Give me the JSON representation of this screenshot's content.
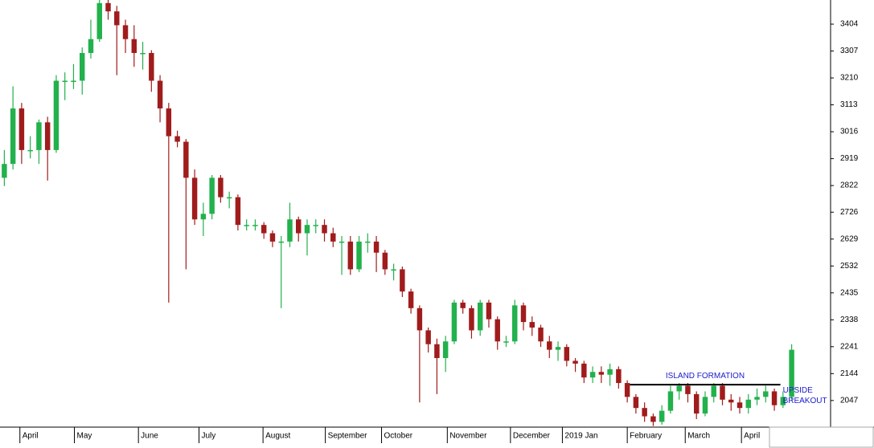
{
  "chart_data": {
    "type": "candlestick",
    "up_color": "#22b14c",
    "down_color": "#a01c1c",
    "xlim": [
      0,
      96
    ],
    "ylim": [
      1951,
      3491
    ],
    "yticks": [
      3404,
      3307,
      3210,
      3113,
      3016,
      2919,
      2822,
      2726,
      2629,
      2532,
      2435,
      2338,
      2241,
      2144,
      2047
    ],
    "xticks": [
      {
        "value": 2.3,
        "label": "April"
      },
      {
        "value": 8.6,
        "label": "May"
      },
      {
        "value": 16,
        "label": "June"
      },
      {
        "value": 23,
        "label": "July"
      },
      {
        "value": 30.4,
        "label": "August"
      },
      {
        "value": 37.6,
        "label": "September"
      },
      {
        "value": 44.1,
        "label": "October"
      },
      {
        "value": 51.7,
        "label": "November"
      },
      {
        "value": 59,
        "label": "December"
      },
      {
        "value": 65,
        "label": "2019 Jan"
      },
      {
        "value": 72.5,
        "label": "February"
      },
      {
        "value": 79.2,
        "label": "March"
      },
      {
        "value": 85.7,
        "label": "April"
      }
    ],
    "open": [
      2850,
      2900,
      3100,
      2950,
      2950,
      3050,
      2950,
      3200,
      3200,
      3200,
      3300,
      3350,
      3480,
      3450,
      3400,
      3350,
      3300,
      3300,
      3200,
      3100,
      3000,
      2980,
      2850,
      2700,
      2720,
      2850,
      2780,
      2780,
      2680,
      2680,
      2680,
      2650,
      2620,
      2620,
      2700,
      2650,
      2680,
      2680,
      2650,
      2620,
      2620,
      2520,
      2620,
      2620,
      2580,
      2520,
      2520,
      2440,
      2380,
      2300,
      2250,
      2200,
      2260,
      2400,
      2380,
      2300,
      2400,
      2340,
      2260,
      2260,
      2390,
      2330,
      2310,
      2260,
      2230,
      2240,
      2190,
      2180,
      2130,
      2150,
      2140,
      2160,
      2110,
      2060,
      2020,
      1990,
      1970,
      2010,
      2080,
      2100,
      2070,
      2000,
      2060,
      2100,
      2050,
      2040,
      2020,
      2050,
      2060,
      2080,
      2030,
      2060
    ],
    "high": [
      2950,
      3180,
      3120,
      3000,
      3060,
      3070,
      3220,
      3230,
      3260,
      3320,
      3420,
      3500,
      3500,
      3470,
      3420,
      3400,
      3340,
      3310,
      3220,
      3120,
      3020,
      2990,
      2880,
      2760,
      2860,
      2860,
      2800,
      2790,
      2700,
      2700,
      2690,
      2660,
      2640,
      2760,
      2710,
      2700,
      2700,
      2700,
      2670,
      2640,
      2640,
      2640,
      2650,
      2640,
      2590,
      2540,
      2530,
      2450,
      2390,
      2310,
      2270,
      2280,
      2410,
      2410,
      2390,
      2410,
      2410,
      2350,
      2280,
      2410,
      2400,
      2350,
      2320,
      2280,
      2260,
      2250,
      2200,
      2190,
      2170,
      2170,
      2180,
      2170,
      2120,
      2070,
      2040,
      2000,
      2030,
      2100,
      2110,
      2110,
      2080,
      2080,
      2110,
      2110,
      2070,
      2060,
      2070,
      2090,
      2100,
      2090,
      2080,
      2250
    ],
    "low": [
      2820,
      2880,
      2900,
      2920,
      2900,
      2840,
      2940,
      3130,
      3170,
      3150,
      3280,
      3340,
      3420,
      3220,
      3300,
      3250,
      3240,
      3160,
      3050,
      2400,
      2960,
      2520,
      2680,
      2640,
      2700,
      2760,
      2740,
      2660,
      2660,
      2660,
      2630,
      2600,
      2380,
      2600,
      2620,
      2570,
      2650,
      2620,
      2600,
      2500,
      2500,
      2510,
      2580,
      2510,
      2500,
      2480,
      2420,
      2360,
      2040,
      2220,
      2070,
      2150,
      2250,
      2360,
      2270,
      2280,
      2310,
      2230,
      2240,
      2250,
      2300,
      2280,
      2240,
      2200,
      2190,
      2170,
      2150,
      2110,
      2110,
      2110,
      2100,
      2090,
      2040,
      2000,
      1970,
      1955,
      1960,
      2000,
      2050,
      2040,
      1980,
      1990,
      2040,
      2030,
      2010,
      2000,
      2000,
      2030,
      2040,
      2010,
      2020,
      2050
    ],
    "close": [
      2900,
      3100,
      2950,
      2950,
      3050,
      2950,
      3200,
      3200,
      3200,
      3300,
      3350,
      3480,
      3450,
      3400,
      3350,
      3300,
      3300,
      3200,
      3100,
      3000,
      2980,
      2850,
      2700,
      2720,
      2850,
      2780,
      2780,
      2680,
      2680,
      2680,
      2650,
      2620,
      2620,
      2700,
      2650,
      2680,
      2680,
      2650,
      2620,
      2620,
      2520,
      2620,
      2620,
      2580,
      2520,
      2520,
      2440,
      2380,
      2300,
      2250,
      2200,
      2260,
      2400,
      2380,
      2300,
      2400,
      2340,
      2260,
      2260,
      2390,
      2330,
      2310,
      2260,
      2230,
      2240,
      2190,
      2180,
      2130,
      2150,
      2140,
      2160,
      2110,
      2060,
      2020,
      1990,
      1970,
      2010,
      2080,
      2100,
      2070,
      2000,
      2060,
      2100,
      2050,
      2040,
      2020,
      2050,
      2060,
      2080,
      2030,
      2060,
      2230
    ],
    "annotation_color": "#1a1acc",
    "island": {
      "label": "ISLAND FORMATION",
      "level": 2104,
      "from": 72.8,
      "to": 90.2
    },
    "breakout": [
      "UPSIDE",
      "BREAKOUT"
    ]
  }
}
